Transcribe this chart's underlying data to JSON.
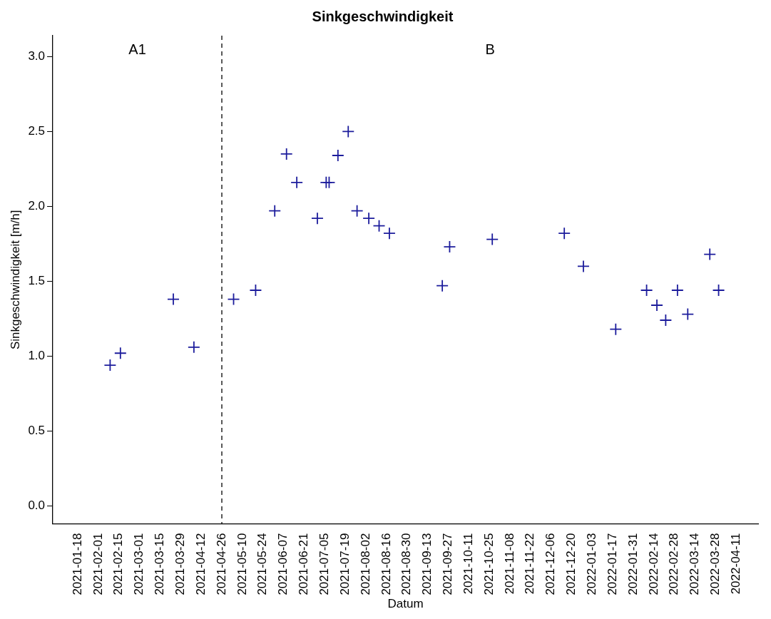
{
  "chart_data": {
    "type": "scatter",
    "title": "Sinkgeschwindigkeit",
    "xlabel": "Datum",
    "ylabel": "Sinkgeschwindigkeit [m/h]",
    "series": [
      {
        "color": "#1c1c9c",
        "marker": "cross",
        "x": [
          "2021-02-09",
          "2021-02-16",
          "2021-03-24",
          "2021-04-07",
          "2021-05-04",
          "2021-05-19",
          "2021-06-01",
          "2021-06-09",
          "2021-06-16",
          "2021-06-30",
          "2021-07-06",
          "2021-07-08",
          "2021-07-14",
          "2021-07-21",
          "2021-07-27",
          "2021-08-04",
          "2021-08-11",
          "2021-08-18",
          "2021-09-23",
          "2021-09-28",
          "2021-10-27",
          "2021-12-15",
          "2021-12-28",
          "2022-01-19",
          "2022-02-09",
          "2022-02-16",
          "2022-02-22",
          "2022-03-02",
          "2022-03-09",
          "2022-03-24",
          "2022-03-30"
        ],
        "values": [
          0.94,
          1.02,
          1.38,
          1.06,
          1.38,
          1.44,
          1.97,
          2.35,
          2.16,
          1.92,
          2.16,
          2.16,
          2.34,
          2.5,
          1.97,
          1.92,
          1.87,
          1.82,
          1.47,
          1.73,
          1.78,
          1.82,
          1.6,
          1.18,
          1.44,
          1.34,
          1.24,
          1.44,
          1.28,
          1.68,
          1.44
        ]
      }
    ],
    "xlim": [
      "2021-01-01",
      "2022-04-26"
    ],
    "xticks": [
      "2021-01-18",
      "2021-02-01",
      "2021-02-15",
      "2021-03-01",
      "2021-03-15",
      "2021-03-29",
      "2021-04-12",
      "2021-04-26",
      "2021-05-10",
      "2021-05-24",
      "2021-06-07",
      "2021-06-21",
      "2021-07-05",
      "2021-07-19",
      "2021-08-02",
      "2021-08-16",
      "2021-08-30",
      "2021-09-13",
      "2021-09-27",
      "2021-10-11",
      "2021-10-25",
      "2021-11-08",
      "2021-11-22",
      "2021-12-06",
      "2021-12-20",
      "2022-01-03",
      "2022-01-17",
      "2022-01-31",
      "2022-02-14",
      "2022-02-28",
      "2022-03-14",
      "2022-03-28",
      "2022-04-11"
    ],
    "ylim": [
      -0.12,
      3.14
    ],
    "yticks": [
      {
        "value": 0,
        "label": "0.0"
      },
      0.5,
      {
        "value": 1,
        "label": "1.0"
      },
      1.5,
      {
        "value": 2,
        "label": "2.0"
      },
      2.5,
      {
        "value": 3,
        "label": "3.0"
      }
    ],
    "ref_lines": [
      {
        "axis": "x",
        "value": "2021-04-26",
        "line_style": "dashed",
        "color": "#000000"
      }
    ],
    "annotations": [
      "A1",
      "B"
    ],
    "grid": false,
    "legend": false
  }
}
